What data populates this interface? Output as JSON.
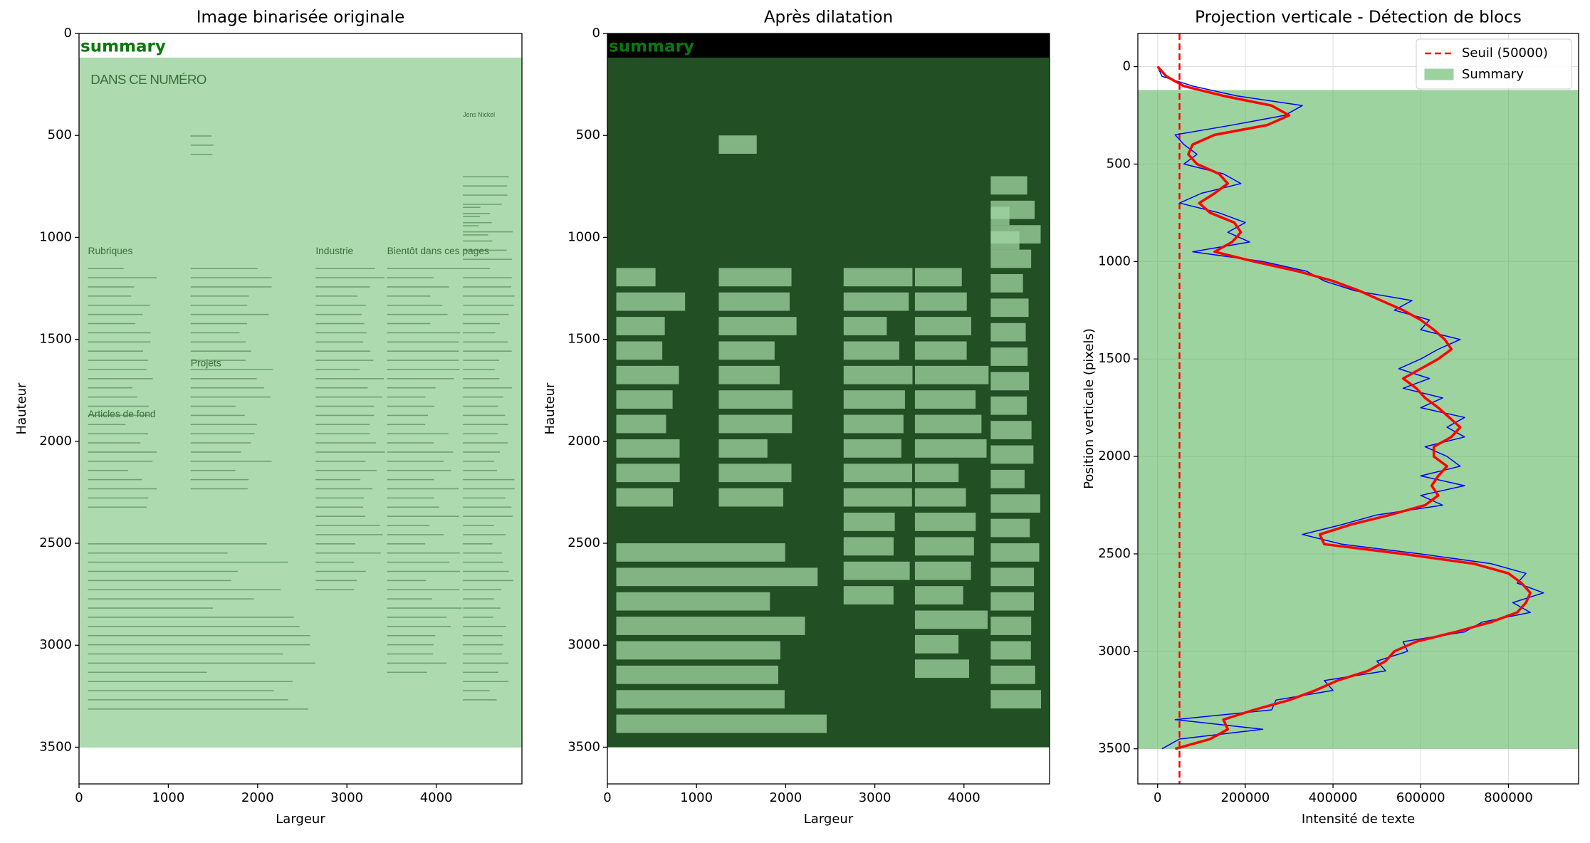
{
  "chart_data": [
    {
      "type": "image",
      "title": "Image binarisée originale",
      "xlabel": "Largeur",
      "ylabel": "Hauteur",
      "xlim": [
        0,
        4960
      ],
      "ylim": [
        3680,
        0
      ],
      "xticks": [
        0,
        1000,
        2000,
        3000,
        4000
      ],
      "yticks": [
        0,
        500,
        1000,
        1500,
        2000,
        2500,
        3000,
        3500
      ],
      "background": "#ffffff",
      "ink": "#8a9a8a",
      "span": [
        120,
        3500
      ],
      "span_color": "#4caf50",
      "span_label": "summary",
      "image_text": [
        "DANS CE NUMÉRO",
        "Rubriques",
        "Projets",
        "Articles de fond",
        "Industrie",
        "Bientôt dans ces pages",
        "Jens Nickel"
      ]
    },
    {
      "type": "image",
      "title": "Après dilatation",
      "xlabel": "Largeur",
      "ylabel": "Hauteur",
      "xlim": [
        0,
        4960
      ],
      "ylim": [
        3680,
        0
      ],
      "xticks": [
        0,
        1000,
        2000,
        3000,
        4000
      ],
      "yticks": [
        0,
        500,
        1000,
        1500,
        2000,
        2500,
        3000,
        3500
      ],
      "background": "#000000",
      "ink": "#e8f5e8",
      "span": [
        120,
        3500
      ],
      "span_color": "#4caf50",
      "span_label": "summary"
    },
    {
      "type": "line",
      "title": "Projection verticale - Détection de blocs",
      "xlabel": "Intensité de texte",
      "ylabel": "Position verticale (pixels)",
      "xlim": [
        -45000,
        960000
      ],
      "ylim": [
        3680,
        -170
      ],
      "xticks": [
        0,
        200000,
        400000,
        600000,
        800000
      ],
      "yticks": [
        0,
        500,
        1000,
        1500,
        2000,
        2500,
        3000,
        3500
      ],
      "grid": true,
      "legend": "upper right",
      "threshold": {
        "name": "Seuil (50000)",
        "value": 50000,
        "color": "#ff0000"
      },
      "span": [
        120,
        3500
      ],
      "span_color": "#4caf50",
      "span_name": "Summary",
      "y": [
        0,
        50,
        100,
        150,
        200,
        250,
        300,
        350,
        400,
        450,
        500,
        550,
        600,
        650,
        700,
        750,
        800,
        850,
        900,
        950,
        1000,
        1050,
        1100,
        1150,
        1200,
        1250,
        1300,
        1350,
        1400,
        1450,
        1500,
        1550,
        1600,
        1650,
        1700,
        1750,
        1800,
        1850,
        1900,
        1950,
        2000,
        2050,
        2100,
        2150,
        2200,
        2250,
        2300,
        2350,
        2400,
        2450,
        2500,
        2550,
        2600,
        2650,
        2700,
        2750,
        2800,
        2850,
        2900,
        2950,
        3000,
        3050,
        3100,
        3150,
        3200,
        3250,
        3300,
        3350,
        3400,
        3450,
        3500
      ],
      "series": [
        {
          "color": "#0000ff",
          "width": 1.5,
          "values": [
            0,
            10000,
            80000,
            180000,
            330000,
            290000,
            170000,
            40000,
            60000,
            90000,
            60000,
            150000,
            190000,
            100000,
            50000,
            140000,
            200000,
            160000,
            210000,
            80000,
            240000,
            340000,
            380000,
            450000,
            580000,
            540000,
            620000,
            600000,
            690000,
            640000,
            600000,
            550000,
            620000,
            560000,
            650000,
            600000,
            700000,
            660000,
            700000,
            610000,
            660000,
            690000,
            600000,
            700000,
            600000,
            650000,
            500000,
            420000,
            330000,
            420000,
            600000,
            760000,
            840000,
            820000,
            880000,
            810000,
            850000,
            740000,
            700000,
            560000,
            570000,
            500000,
            520000,
            380000,
            400000,
            270000,
            260000,
            40000,
            240000,
            50000,
            10000
          ]
        },
        {
          "color": "#ff0000",
          "width": 3.5,
          "values": [
            0,
            20000,
            60000,
            150000,
            260000,
            300000,
            250000,
            130000,
            80000,
            70000,
            90000,
            140000,
            160000,
            130000,
            95000,
            120000,
            175000,
            190000,
            170000,
            130000,
            220000,
            320000,
            400000,
            460000,
            510000,
            560000,
            600000,
            630000,
            655000,
            670000,
            640000,
            600000,
            560000,
            590000,
            610000,
            640000,
            665000,
            690000,
            670000,
            630000,
            630000,
            660000,
            640000,
            625000,
            640000,
            610000,
            530000,
            440000,
            370000,
            380000,
            560000,
            720000,
            800000,
            830000,
            850000,
            840000,
            820000,
            760000,
            680000,
            590000,
            540000,
            520000,
            480000,
            410000,
            360000,
            300000,
            220000,
            150000,
            160000,
            120000,
            40000
          ]
        }
      ]
    }
  ]
}
